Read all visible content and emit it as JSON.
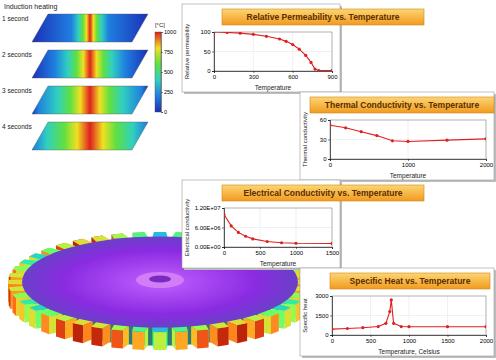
{
  "chart_data": [
    {
      "type": "line",
      "title": "Relative Permeability vs. Temperature",
      "x_label": "Temperature",
      "y_label": "Relative permeability",
      "x": [
        0,
        100,
        200,
        300,
        400,
        500,
        550,
        600,
        650,
        700,
        740,
        770,
        800,
        900
      ],
      "values": [
        100,
        99,
        97,
        94,
        89,
        82,
        76,
        68,
        56,
        40,
        22,
        5,
        1,
        1
      ],
      "xlim": [
        0,
        900
      ],
      "xticks": [
        0,
        300,
        600,
        900
      ],
      "ylim": [
        0,
        100
      ],
      "yticks": [
        0,
        50,
        100
      ],
      "color": "#e02020",
      "marker": "circle",
      "grid": true
    },
    {
      "type": "line",
      "title": "Thermal Conductivity vs. Temperature",
      "x_label": "Temperature",
      "y_label": "Thermal conductivity",
      "x": [
        0,
        200,
        400,
        600,
        800,
        1000,
        1500,
        2000
      ],
      "values": [
        52,
        48,
        42,
        36,
        28,
        27,
        29,
        31
      ],
      "xlim": [
        0,
        2000
      ],
      "xticks": [
        0,
        1000,
        2000
      ],
      "ylim": [
        0,
        60
      ],
      "yticks": [
        0,
        30,
        60
      ],
      "color": "#e02020",
      "marker": "circle",
      "grid": true
    },
    {
      "type": "line",
      "title": "Electrical Conductivity vs. Temperature",
      "x_label": "Temperature",
      "y_label": "Electrical conductivity",
      "x": [
        0,
        100,
        200,
        300,
        400,
        600,
        800,
        1000,
        1500
      ],
      "values": [
        10000000,
        6500000,
        4500000,
        3300000,
        2500000,
        1700000,
        1300000,
        1150000,
        1100000
      ],
      "xlim": [
        0,
        1500
      ],
      "xticks": [
        0,
        500,
        1000,
        1500
      ],
      "ylim": [
        0,
        12000000
      ],
      "yticks": [
        {
          "value": 0,
          "label": "0.00E+00"
        },
        {
          "value": 6000000,
          "label": "6.00E+06"
        },
        {
          "value": 12000000,
          "label": "1.20E+07"
        }
      ],
      "color": "#e02020",
      "marker": "circle",
      "grid": true
    },
    {
      "type": "line",
      "title": "Specific Heat vs. Temperature",
      "x_label": "Temperature, Celsius",
      "y_label": "Specific heat",
      "x": [
        0,
        200,
        400,
        600,
        700,
        750,
        770,
        800,
        900,
        1000,
        1500,
        2000
      ],
      "values": [
        450,
        500,
        560,
        650,
        900,
        1800,
        2700,
        900,
        650,
        640,
        640,
        640
      ],
      "xlim": [
        0,
        2000
      ],
      "xticks": [
        0,
        500,
        1000,
        1500,
        2000
      ],
      "ylim": [
        0,
        3000
      ],
      "yticks": [
        0,
        1500,
        3000
      ],
      "color": "#e02020",
      "marker": "circle",
      "grid": true
    }
  ],
  "simulation": {
    "header": "Induction heating",
    "labels": [
      "1 second",
      "2 seconds",
      "3 seconds",
      "4 seconds"
    ],
    "colorbar": {
      "label": "[°C]",
      "range": [
        0,
        1000
      ],
      "ticks": [
        0,
        250,
        500,
        750,
        1000
      ]
    }
  }
}
